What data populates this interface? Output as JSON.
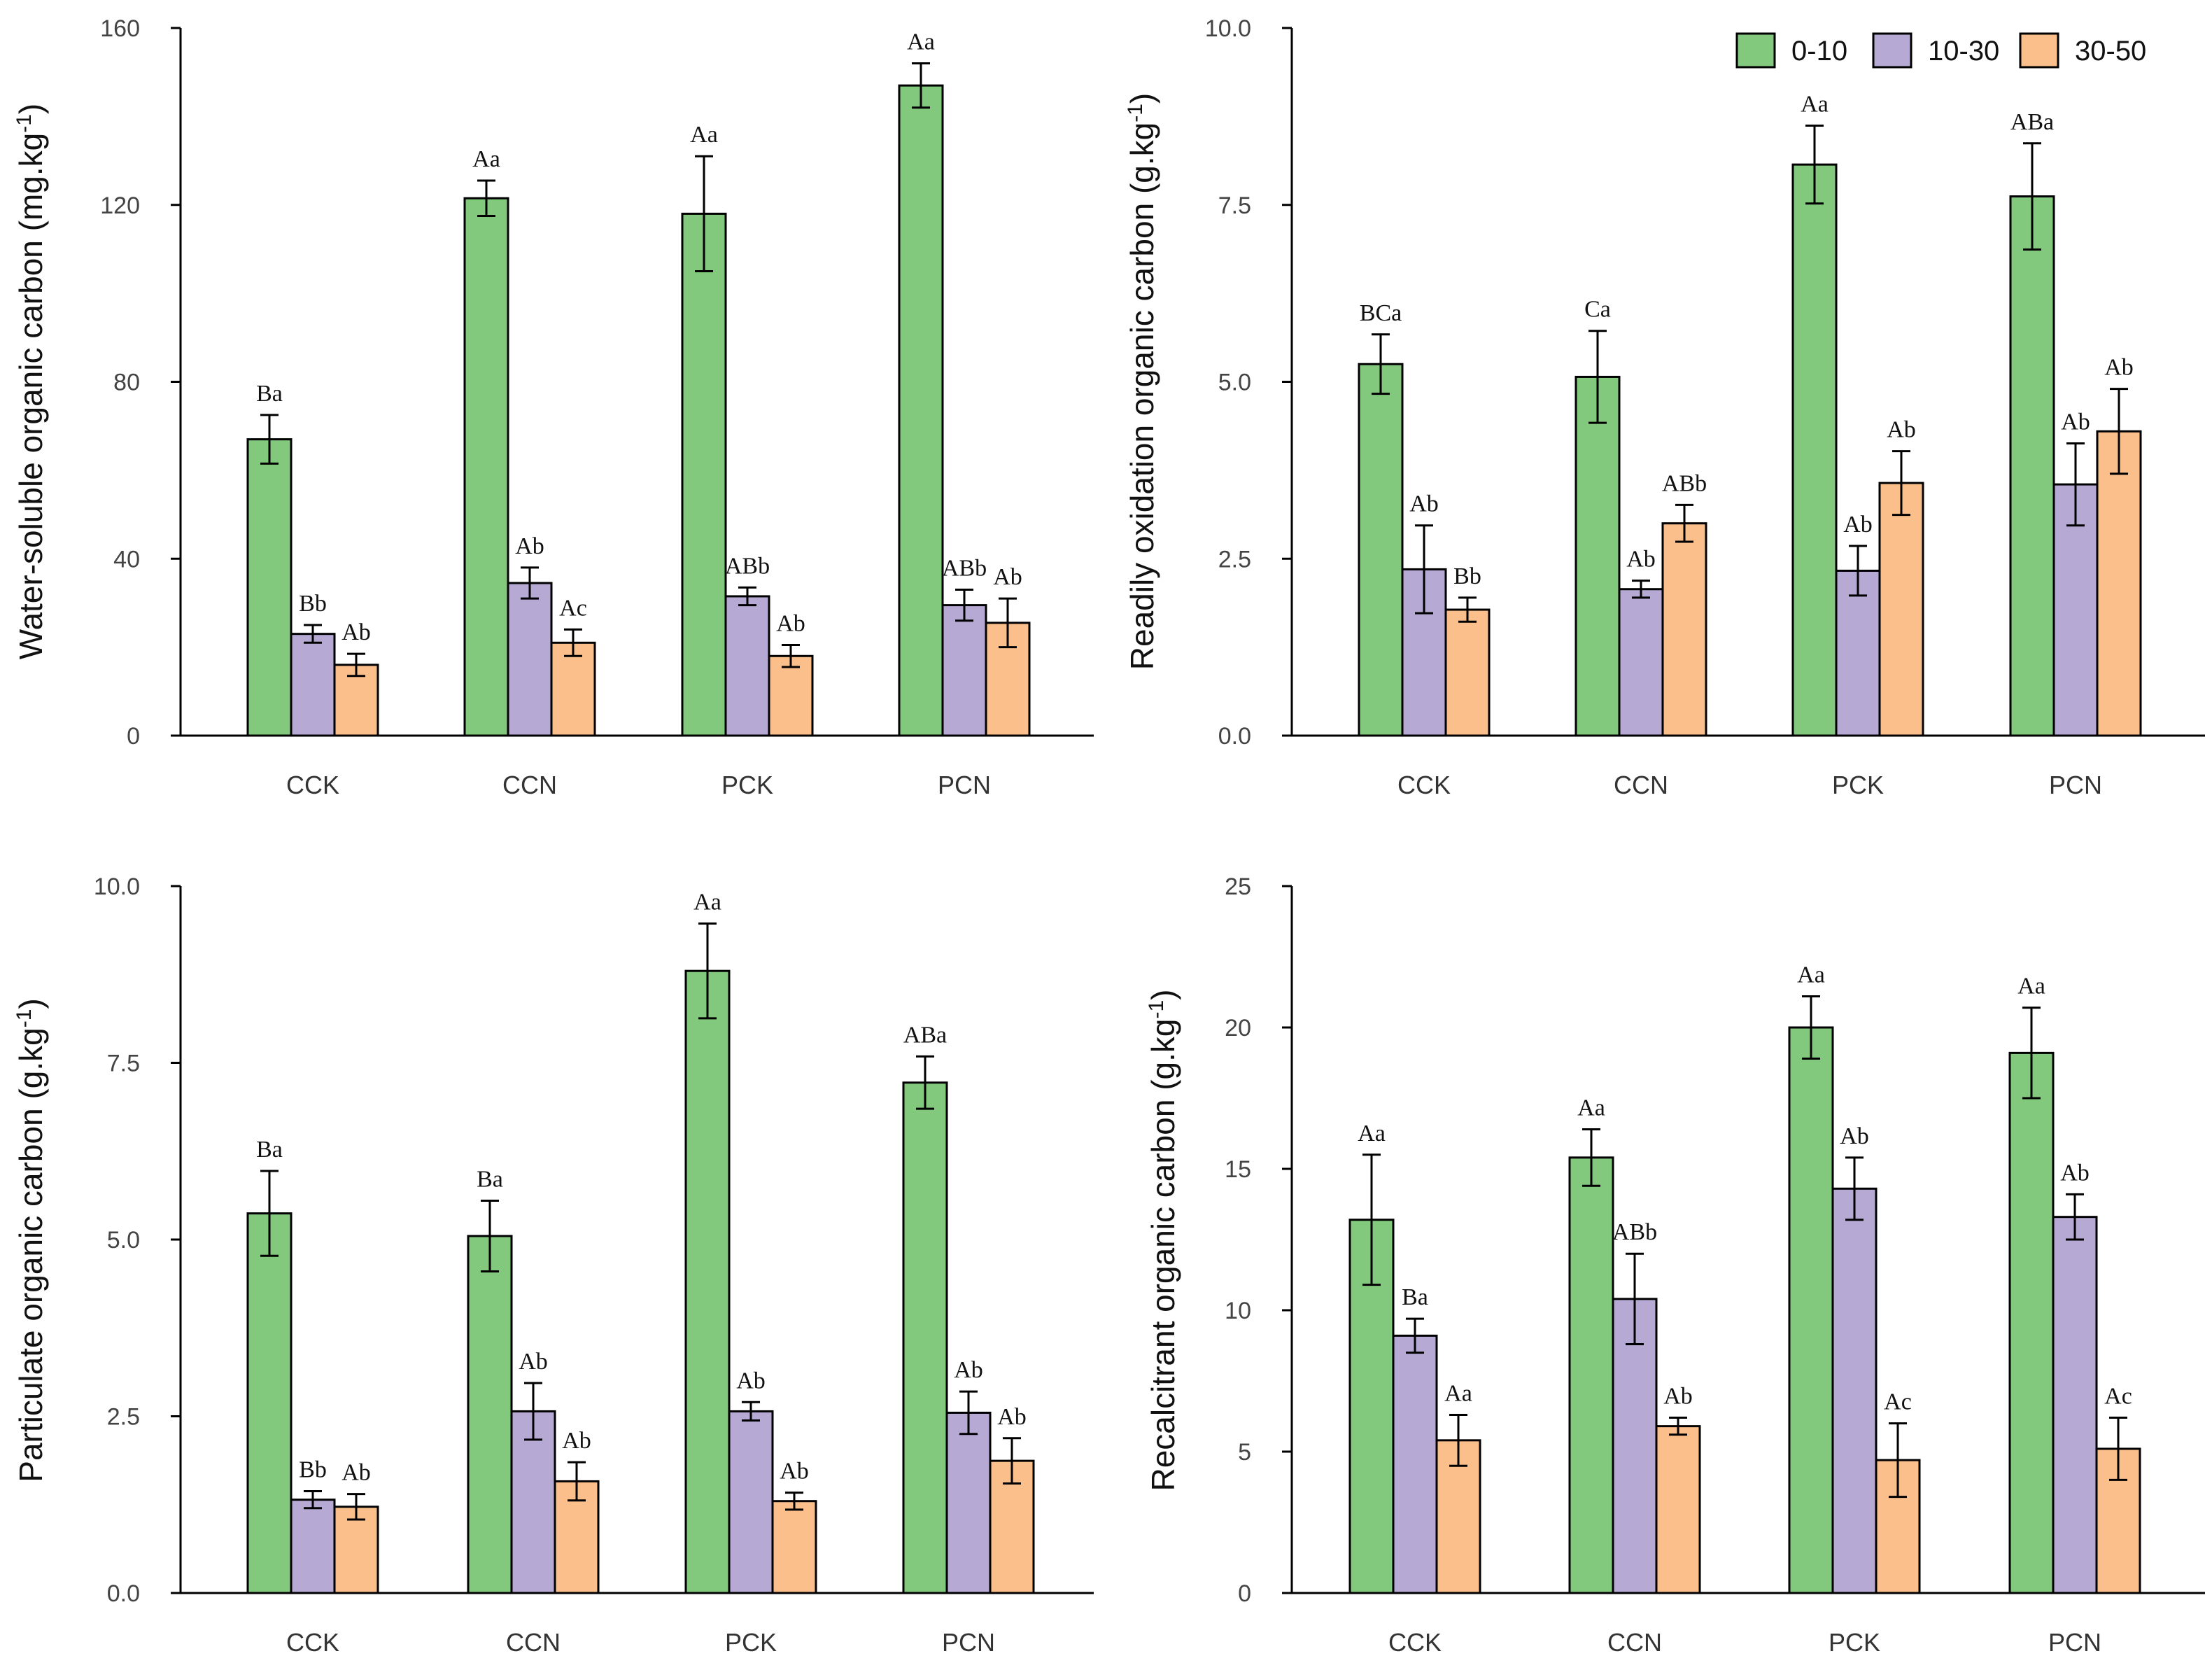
{
  "legend": {
    "placement": "top-right",
    "entries": [
      "0-10",
      "10-30",
      "30-50"
    ]
  },
  "colors": {
    "0-10": "#82c97e",
    "10-30": "#b6a9d3",
    "30-50": "#fbbf8b",
    "axis": "#000000"
  },
  "chart_data": [
    {
      "type": "bar",
      "ylabel": "Water-soluble organic carbon (mg.kg",
      "ylabel_unit_sup": "-1",
      "ylabel_close": ")",
      "ylim": [
        0,
        160
      ],
      "yticks": [
        0,
        40,
        80,
        120,
        160
      ],
      "ytick_labels": [
        "0",
        "40",
        "80",
        "120",
        "160"
      ],
      "categories": [
        "CCK",
        "CCN",
        "PCK",
        "PCN"
      ],
      "series": [
        {
          "name": "0-10",
          "values": [
            67,
            121.5,
            118,
            147
          ],
          "errors": [
            5.5,
            4,
            13,
            5
          ],
          "labels": [
            "Ba",
            "Aa",
            "Aa",
            "Aa"
          ]
        },
        {
          "name": "10-30",
          "values": [
            23,
            34.5,
            31.5,
            29.5
          ],
          "errors": [
            2,
            3.5,
            2,
            3.5
          ],
          "labels": [
            "Bb",
            "Ab",
            "ABb",
            "ABb"
          ]
        },
        {
          "name": "30-50",
          "values": [
            16,
            21,
            18,
            25.5
          ],
          "errors": [
            2.5,
            3,
            2.5,
            5.5
          ],
          "labels": [
            "Ab",
            "Ac",
            "Ab",
            "Ab"
          ]
        }
      ]
    },
    {
      "type": "bar",
      "ylabel": "Readily oxidation organic carbon (g.kg",
      "ylabel_unit_sup": "-1",
      "ylabel_close": ")",
      "ylim": [
        0,
        10
      ],
      "yticks": [
        0,
        2.5,
        5,
        7.5,
        10
      ],
      "ytick_labels": [
        "0.0",
        "2.5",
        "5.0",
        "7.5",
        "10.0"
      ],
      "categories": [
        "CCK",
        "CCN",
        "PCK",
        "PCN"
      ],
      "series": [
        {
          "name": "0-10",
          "values": [
            5.25,
            5.07,
            8.07,
            7.62
          ],
          "errors": [
            0.42,
            0.65,
            0.55,
            0.75
          ],
          "labels": [
            "BCa",
            "Ca",
            "Aa",
            "ABa"
          ]
        },
        {
          "name": "10-30",
          "values": [
            2.35,
            2.07,
            2.33,
            3.55
          ],
          "errors": [
            0.62,
            0.12,
            0.35,
            0.58
          ],
          "labels": [
            "Ab",
            "Ab",
            "Ab",
            "Ab"
          ]
        },
        {
          "name": "30-50",
          "values": [
            1.78,
            3.0,
            3.57,
            4.3
          ],
          "errors": [
            0.17,
            0.26,
            0.45,
            0.6
          ],
          "labels": [
            "Bb",
            "ABb",
            "Ab",
            "Ab"
          ]
        }
      ]
    },
    {
      "type": "bar",
      "ylabel": "Particulate organic carbon (g.kg",
      "ylabel_unit_sup": "-1",
      "ylabel_close": ")",
      "ylim": [
        0,
        10
      ],
      "yticks": [
        0,
        2.5,
        5,
        7.5,
        10
      ],
      "ytick_labels": [
        "0.0",
        "2.5",
        "5.0",
        "7.5",
        "10.0"
      ],
      "categories": [
        "CCK",
        "CCN",
        "PCK",
        "PCN"
      ],
      "series": [
        {
          "name": "0-10",
          "values": [
            5.37,
            5.05,
            8.8,
            7.22
          ],
          "errors": [
            0.6,
            0.5,
            0.67,
            0.37
          ],
          "labels": [
            "Ba",
            "Ba",
            "Aa",
            "ABa"
          ]
        },
        {
          "name": "10-30",
          "values": [
            1.32,
            2.57,
            2.57,
            2.55
          ],
          "errors": [
            0.12,
            0.4,
            0.13,
            0.3
          ],
          "labels": [
            "Bb",
            "Ab",
            "Ab",
            "Ab"
          ]
        },
        {
          "name": "30-50",
          "values": [
            1.22,
            1.58,
            1.3,
            1.87
          ],
          "errors": [
            0.18,
            0.27,
            0.12,
            0.32
          ],
          "labels": [
            "Ab",
            "Ab",
            "Ab",
            "Ab"
          ]
        }
      ]
    },
    {
      "type": "bar",
      "ylabel": "Recalcitrant organic carbon (g.kg",
      "ylabel_unit_sup": "-1",
      "ylabel_close": ")",
      "ylim": [
        0,
        25
      ],
      "yticks": [
        0,
        5,
        10,
        15,
        20,
        25
      ],
      "ytick_labels": [
        "0",
        "5",
        "10",
        "15",
        "20",
        "25"
      ],
      "categories": [
        "CCK",
        "CCN",
        "PCK",
        "PCN"
      ],
      "series": [
        {
          "name": "0-10",
          "values": [
            13.2,
            15.4,
            20.0,
            19.1
          ],
          "errors": [
            2.3,
            1.0,
            1.1,
            1.6
          ],
          "labels": [
            "Aa",
            "Aa",
            "Aa",
            "Aa"
          ]
        },
        {
          "name": "10-30",
          "values": [
            9.1,
            10.4,
            14.3,
            13.3
          ],
          "errors": [
            0.6,
            1.6,
            1.1,
            0.8
          ],
          "labels": [
            "Ba",
            "ABb",
            "Ab",
            "Ab"
          ]
        },
        {
          "name": "30-50",
          "values": [
            5.4,
            5.9,
            4.7,
            5.1
          ],
          "errors": [
            0.9,
            0.3,
            1.3,
            1.1
          ],
          "labels": [
            "Aa",
            "Ab",
            "Ac",
            "Ac"
          ]
        }
      ]
    }
  ]
}
